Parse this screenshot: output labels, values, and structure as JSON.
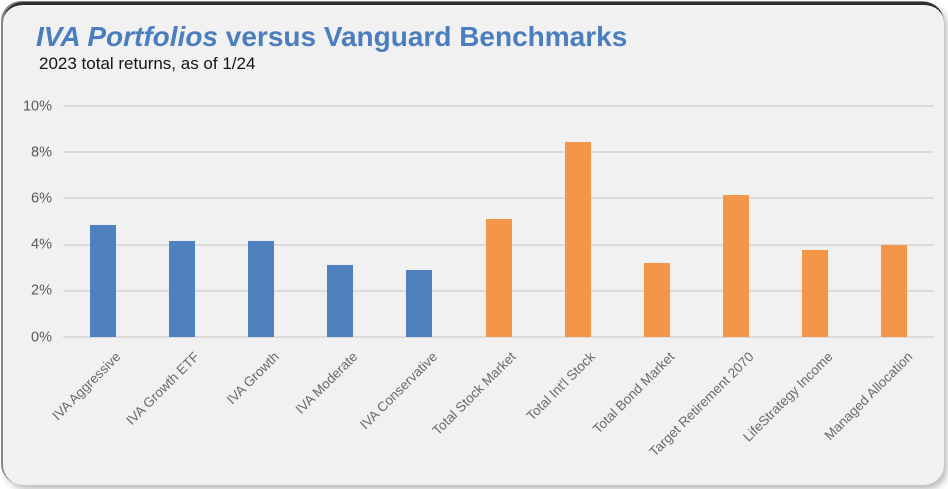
{
  "card": {
    "title_italic": "IVA Portfolios",
    "title_rest": " versus Vanguard Benchmarks",
    "subtitle": "2023 total returns, as of 1/24"
  },
  "colors": {
    "title_blue": "#4A7EBE",
    "iva_blue": "#4E81BD",
    "vanguard_orange": "#F49648",
    "card_bg": "#F1F1F2",
    "gridline": "#DBDBDB",
    "axis_text": "#595959"
  },
  "chart_data": {
    "type": "bar",
    "title": "IVA Portfolios versus Vanguard Benchmarks",
    "subtitle": "2023 total returns, as of 1/24",
    "xlabel": "",
    "ylabel": "",
    "ylim": [
      0,
      10
    ],
    "ytick_values": [
      0,
      2,
      4,
      6,
      8,
      10
    ],
    "ytick_labels": [
      "0%",
      "2%",
      "4%",
      "6%",
      "8%",
      "10%"
    ],
    "grid": true,
    "legend": false,
    "unit": "percent",
    "series_colors": {
      "iva": "#4E81BD",
      "vanguard": "#F49648"
    },
    "points": [
      {
        "label": "IVA Aggressive",
        "value": 4.85,
        "series": "iva"
      },
      {
        "label": "IVA Growth ETF",
        "value": 4.15,
        "series": "iva"
      },
      {
        "label": "IVA Growth",
        "value": 4.15,
        "series": "iva"
      },
      {
        "label": "IVA Moderate",
        "value": 3.1,
        "series": "iva"
      },
      {
        "label": "IVA Conservative",
        "value": 2.9,
        "series": "iva"
      },
      {
        "label": "Total Stock Market",
        "value": 5.1,
        "series": "vanguard"
      },
      {
        "label": "Total Int'l Stock",
        "value": 8.45,
        "series": "vanguard"
      },
      {
        "label": "Total Bond Market",
        "value": 3.2,
        "series": "vanguard"
      },
      {
        "label": "Target Retirement 2070",
        "value": 6.15,
        "series": "vanguard"
      },
      {
        "label": "LifeStrategy Income",
        "value": 3.75,
        "series": "vanguard"
      },
      {
        "label": "Managed Allocation",
        "value": 4.0,
        "series": "vanguard"
      }
    ]
  }
}
